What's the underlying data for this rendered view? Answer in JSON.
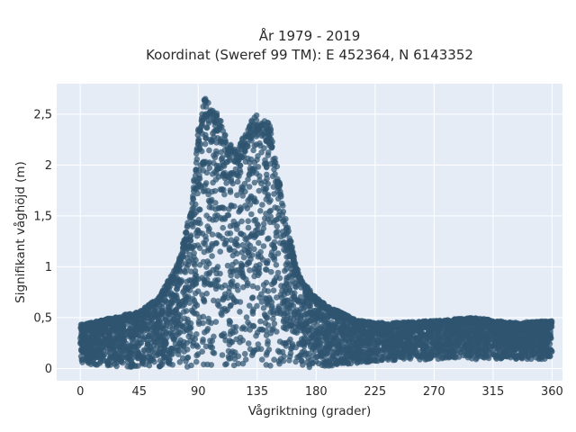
{
  "chart_data": {
    "type": "scatter",
    "title": "År 1979 - 2019",
    "subtitle": "Koordinat (Sweref 99 TM): E 452364, N 6143352",
    "xlabel": "Vågriktning (grader)",
    "ylabel": "Signifikant våghöjd (m)",
    "xlim": [
      -18,
      368
    ],
    "ylim": [
      -0.12,
      2.8
    ],
    "x_ticks": [
      0,
      45,
      90,
      135,
      180,
      225,
      270,
      315,
      360
    ],
    "x_tick_labels": [
      "0",
      "45",
      "90",
      "135",
      "180",
      "225",
      "270",
      "315",
      "360"
    ],
    "y_ticks": [
      0,
      0.5,
      1,
      1.5,
      2,
      2.5
    ],
    "y_tick_labels": [
      "0",
      "0,5",
      "1",
      "1,5",
      "2",
      "2,5"
    ],
    "grid": true,
    "legend": "none",
    "marker_color": "#2f5470",
    "plot_background": "#e5ecf6",
    "series": [
      {
        "values_description_note": "",
        "envelope": {
          "x": [
            0,
            15,
            30,
            45,
            60,
            75,
            85,
            90,
            95,
            100,
            105,
            110,
            115,
            120,
            125,
            130,
            135,
            140,
            145,
            150,
            155,
            160,
            165,
            170,
            180,
            190,
            200,
            210,
            225,
            240,
            270,
            300,
            330,
            360
          ],
          "y_max": [
            0.43,
            0.47,
            0.52,
            0.56,
            0.7,
            1.05,
            1.6,
            2.35,
            2.67,
            2.58,
            2.5,
            2.35,
            2.2,
            2.15,
            2.3,
            2.43,
            2.52,
            2.45,
            2.4,
            2.0,
            1.6,
            1.3,
            1.0,
            0.85,
            0.7,
            0.6,
            0.55,
            0.48,
            0.45,
            0.45,
            0.47,
            0.5,
            0.45,
            0.47
          ],
          "y_min": [
            0.05,
            0.03,
            0.02,
            0.01,
            0.01,
            0.01,
            0.01,
            0.01,
            0.01,
            0.01,
            0.01,
            0.01,
            0.01,
            0.01,
            0.01,
            0.01,
            0.01,
            0.01,
            0.01,
            0.01,
            0.01,
            0.01,
            0.01,
            0.01,
            0.01,
            0.02,
            0.03,
            0.05,
            0.07,
            0.08,
            0.09,
            0.09,
            0.09,
            0.09
          ]
        }
      }
    ]
  }
}
